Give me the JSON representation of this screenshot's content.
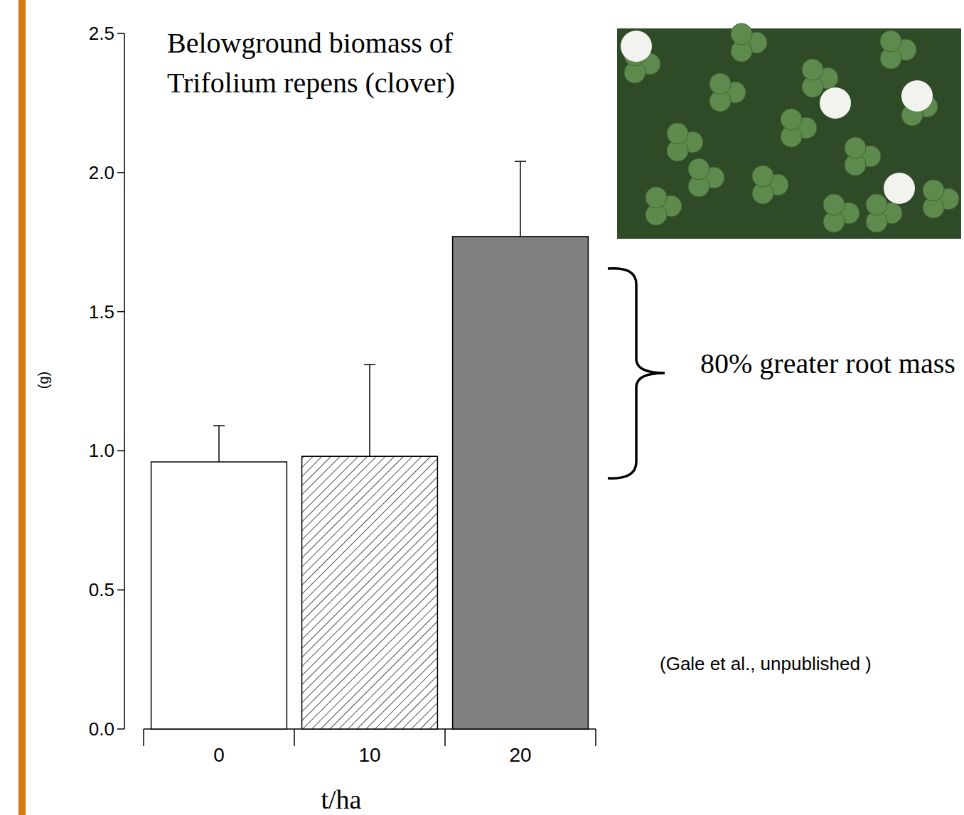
{
  "chart_data": {
    "type": "bar",
    "title": "Belowground biomass of Trifolium repens (clover)",
    "categories": [
      "0",
      "10",
      "20"
    ],
    "values": [
      0.96,
      0.98,
      1.77
    ],
    "errors": [
      0.13,
      0.33,
      0.27
    ],
    "colors": [
      "#ffffff",
      "#ffffff",
      "#808080"
    ],
    "x_label": "t/ha",
    "y_label": "(g)",
    "ylim": [
      0,
      2.5
    ],
    "yticks": [
      {
        "value": 0,
        "label": "0.0"
      },
      {
        "value": 0.5,
        "label": "0.5"
      },
      {
        "value": 1,
        "label": "1.0"
      },
      {
        "value": 1.5,
        "label": "1.5"
      },
      {
        "value": 2,
        "label": "2.0"
      },
      {
        "value": 2.5,
        "label": "2.5"
      }
    ],
    "annotations": [
      "80% greater root mass",
      "(Gale et al., unpublished )"
    ],
    "grid": false
  }
}
